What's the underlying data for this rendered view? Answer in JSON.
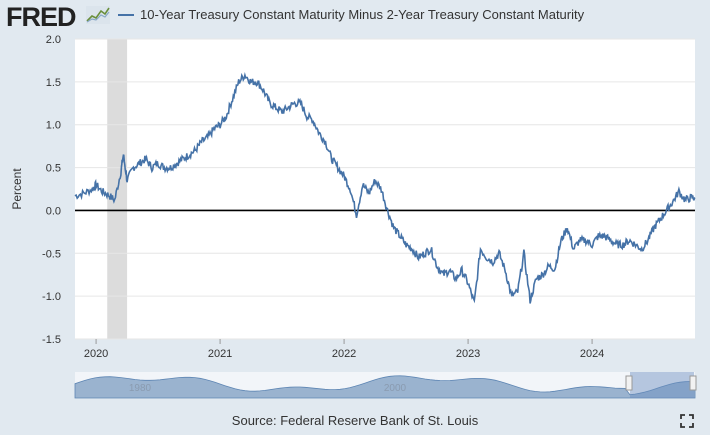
{
  "header": {
    "logo_text": "FRED",
    "logo_icon": "fred-chart-logo-icon"
  },
  "chart_data": {
    "type": "line",
    "title": "10-Year Treasury Constant Maturity Minus 2-Year Treasury Constant Maturity",
    "xlabel": "",
    "ylabel": "Percent",
    "ylim": [
      -1.5,
      2.0
    ],
    "yticks": [
      2.0,
      1.5,
      1.0,
      0.5,
      0.0,
      -0.5,
      -1.0,
      -1.5
    ],
    "ytick_labels": [
      "2.0",
      "1.5",
      "1.0",
      "0.5",
      "0.0",
      "-0.5",
      "-1.0",
      "-1.5"
    ],
    "xlim": [
      2019.83,
      2024.83
    ],
    "xticks": [
      2020,
      2021,
      2022,
      2023,
      2024
    ],
    "xtick_labels": [
      "2020",
      "2021",
      "2022",
      "2023",
      "2024"
    ],
    "zero_line": 0,
    "recession_shading": [
      [
        2020.09,
        2020.25
      ]
    ],
    "series": [
      {
        "name": "10-Year Treasury Constant Maturity Minus 2-Year Treasury Constant Maturity",
        "color": "#4572a7",
        "x": [
          2019.83,
          2019.9,
          2019.97,
          2020.0,
          2020.05,
          2020.1,
          2020.15,
          2020.2,
          2020.22,
          2020.25,
          2020.3,
          2020.35,
          2020.4,
          2020.45,
          2020.5,
          2020.55,
          2020.6,
          2020.65,
          2020.7,
          2020.75,
          2020.8,
          2020.85,
          2020.9,
          2020.95,
          2021.0,
          2021.05,
          2021.1,
          2021.15,
          2021.2,
          2021.25,
          2021.3,
          2021.35,
          2021.4,
          2021.45,
          2021.5,
          2021.55,
          2021.6,
          2021.65,
          2021.7,
          2021.75,
          2021.8,
          2021.85,
          2021.9,
          2021.95,
          2022.0,
          2022.05,
          2022.1,
          2022.15,
          2022.2,
          2022.25,
          2022.3,
          2022.35,
          2022.4,
          2022.45,
          2022.5,
          2022.55,
          2022.6,
          2022.65,
          2022.7,
          2022.75,
          2022.8,
          2022.85,
          2022.9,
          2022.95,
          2023.0,
          2023.05,
          2023.1,
          2023.15,
          2023.2,
          2023.25,
          2023.3,
          2023.35,
          2023.4,
          2023.45,
          2023.5,
          2023.55,
          2023.6,
          2023.65,
          2023.7,
          2023.75,
          2023.8,
          2023.85,
          2023.9,
          2023.95,
          2024.0,
          2024.05,
          2024.1,
          2024.15,
          2024.2,
          2024.25,
          2024.3,
          2024.35,
          2024.4,
          2024.45,
          2024.5,
          2024.55,
          2024.6,
          2024.65,
          2024.7,
          2024.75,
          2024.8,
          2024.83
        ],
        "values": [
          0.17,
          0.2,
          0.25,
          0.3,
          0.22,
          0.18,
          0.12,
          0.45,
          0.65,
          0.35,
          0.5,
          0.55,
          0.6,
          0.5,
          0.55,
          0.5,
          0.5,
          0.55,
          0.6,
          0.65,
          0.7,
          0.8,
          0.85,
          0.95,
          1.0,
          1.1,
          1.3,
          1.5,
          1.58,
          1.5,
          1.5,
          1.4,
          1.25,
          1.2,
          1.15,
          1.2,
          1.25,
          1.25,
          1.1,
          1.05,
          0.9,
          0.8,
          0.6,
          0.5,
          0.4,
          0.25,
          -0.05,
          0.3,
          0.2,
          0.35,
          0.25,
          0.0,
          -0.2,
          -0.3,
          -0.4,
          -0.45,
          -0.55,
          -0.5,
          -0.45,
          -0.65,
          -0.75,
          -0.7,
          -0.8,
          -0.7,
          -0.85,
          -1.08,
          -0.45,
          -0.55,
          -0.6,
          -0.5,
          -0.7,
          -1.0,
          -0.95,
          -0.5,
          -1.05,
          -0.8,
          -0.75,
          -0.65,
          -0.68,
          -0.35,
          -0.2,
          -0.45,
          -0.35,
          -0.35,
          -0.4,
          -0.3,
          -0.3,
          -0.35,
          -0.4,
          -0.4,
          -0.35,
          -0.4,
          -0.45,
          -0.35,
          -0.2,
          -0.1,
          0.0,
          0.1,
          0.22,
          0.12,
          0.15,
          0.15
        ]
      }
    ],
    "navigator": {
      "ticks": [
        "1980",
        "2000"
      ],
      "series_color": "#4572a7"
    }
  },
  "footer": {
    "source": "Source: Federal Reserve Bank of St. Louis"
  }
}
